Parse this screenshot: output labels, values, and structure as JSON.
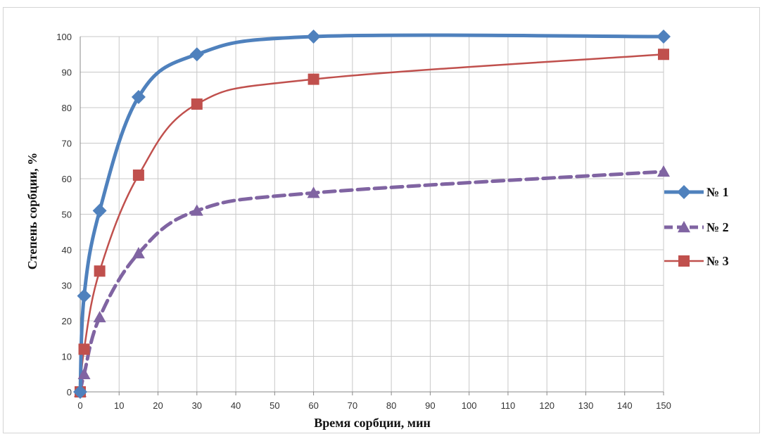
{
  "chart_data": {
    "type": "line",
    "xlabel": "Время сорбции, мин",
    "ylabel": "Степень сорбции, %",
    "xlim": [
      0,
      150
    ],
    "ylim": [
      0,
      100
    ],
    "x_ticks": [
      0,
      10,
      20,
      30,
      40,
      50,
      60,
      70,
      80,
      90,
      100,
      110,
      120,
      130,
      140,
      150
    ],
    "y_ticks": [
      0,
      10,
      20,
      30,
      40,
      50,
      60,
      70,
      80,
      90,
      100
    ],
    "grid": true,
    "legend_position": "right",
    "series": [
      {
        "name": "№ 1",
        "color": "#4f81bd",
        "marker": "diamond",
        "line_style": "solid-thick",
        "x": [
          0,
          1,
          5,
          15,
          30,
          60,
          150
        ],
        "y": [
          0,
          27,
          51,
          83,
          95,
          100,
          100
        ]
      },
      {
        "name": "№ 2",
        "color": "#8064a2",
        "marker": "triangle",
        "line_style": "dashed",
        "x": [
          0,
          1,
          5,
          15,
          30,
          60,
          150
        ],
        "y": [
          0,
          5,
          21,
          39,
          51,
          56,
          62
        ]
      },
      {
        "name": "№ 3",
        "color": "#c0504d",
        "marker": "square",
        "line_style": "solid-thin",
        "x": [
          0,
          1,
          5,
          15,
          30,
          60,
          150
        ],
        "y": [
          0,
          12,
          34,
          61,
          81,
          88,
          95
        ]
      }
    ]
  }
}
